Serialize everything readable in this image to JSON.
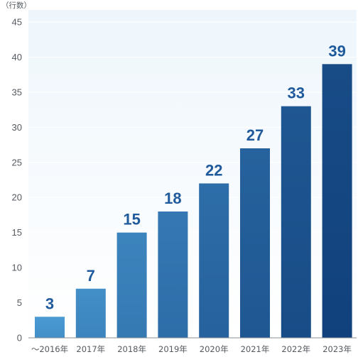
{
  "chart_data": {
    "type": "bar",
    "ylabel": "（行数）",
    "ylim": [
      0,
      45
    ],
    "yticks": [
      0,
      5,
      10,
      15,
      20,
      25,
      30,
      35,
      40,
      45
    ],
    "grid": true,
    "categories": [
      "～2016年",
      "2017年",
      "2018年",
      "2019年",
      "2020年",
      "2021年",
      "2022年",
      "2023年"
    ],
    "values": [
      3,
      7,
      15,
      18,
      22,
      27,
      33,
      39
    ],
    "data_labels": [
      "3",
      "7",
      "15",
      "18",
      "22",
      "27",
      "33",
      "39"
    ],
    "colors": {
      "bar_start": "#4a9ad3",
      "bar_end": "#0f3e7a",
      "label": "#1f5a9c",
      "plot_bg_top": "#eef6fc",
      "plot_bg_bottom": "#ffffff",
      "grid": "#ffffff",
      "axis": "#8a8f96"
    }
  }
}
